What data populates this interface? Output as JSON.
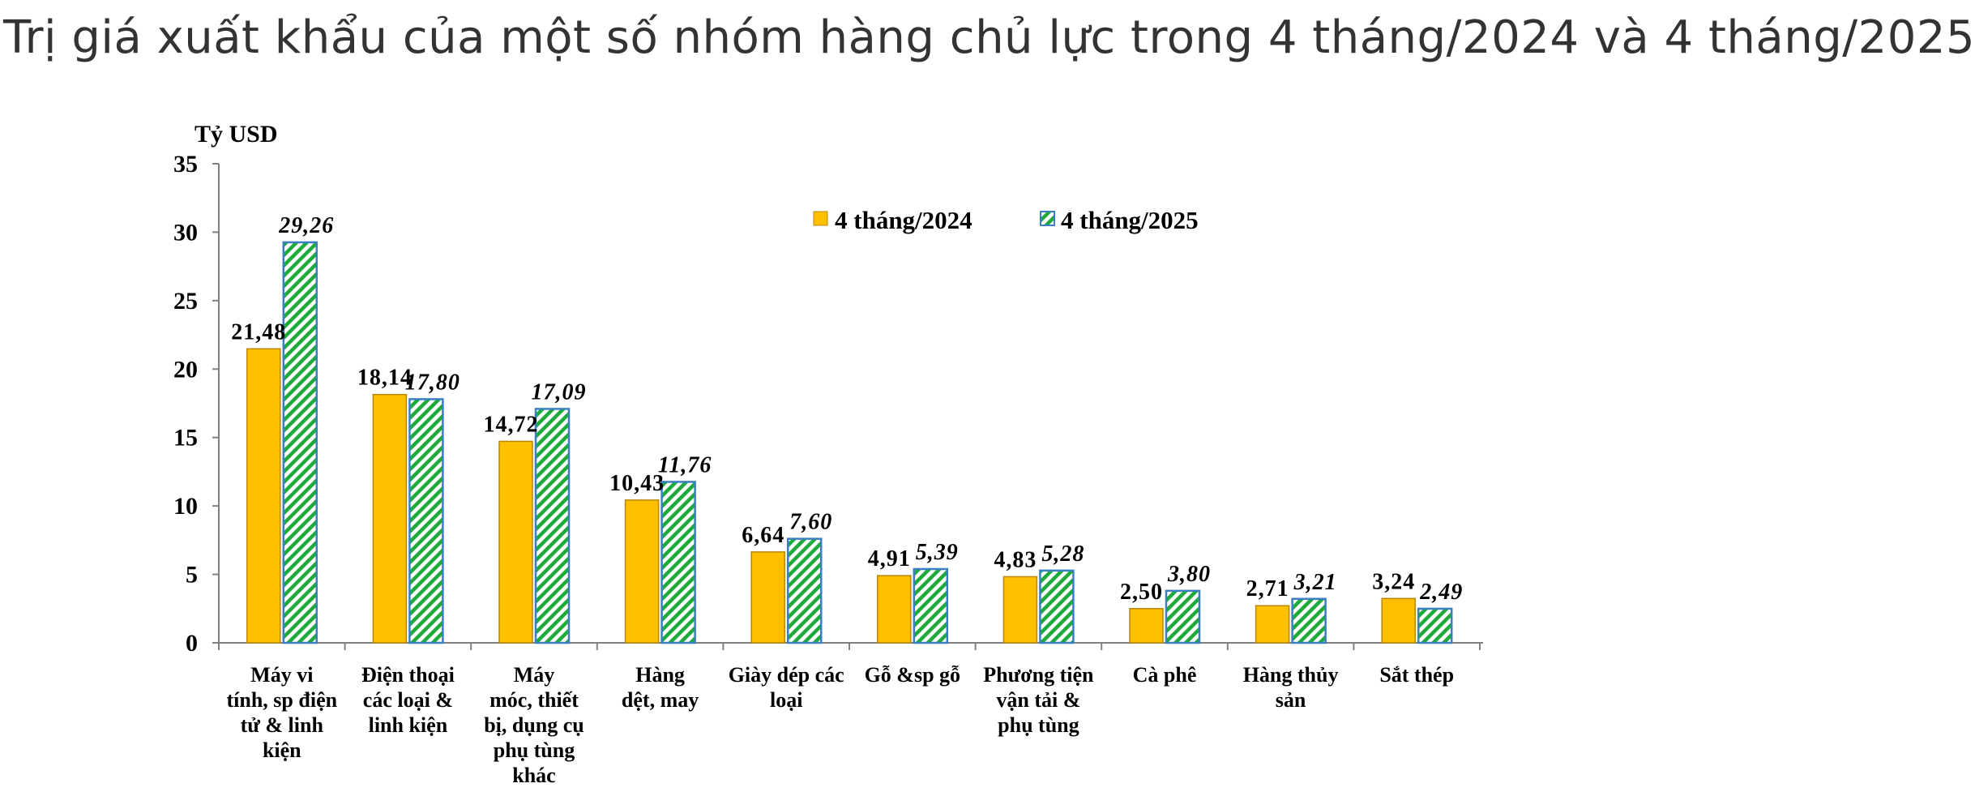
{
  "title": "Trị giá xuất khẩu của một số nhóm hàng chủ lực trong 4 tháng/2024 và 4 tháng/2025",
  "colors": {
    "series_2024_fill": "#FFC000",
    "series_2024_stroke": "#B8860B",
    "series_2025_hatch": "#1FAA3C",
    "series_2025_stroke": "#3A7FC1",
    "axis": "#808080",
    "text": "#000000"
  },
  "chart_data": {
    "type": "bar",
    "ylabel": "Tỷ USD",
    "ylim": [
      0,
      35
    ],
    "yticks": [
      "0",
      "5",
      "10",
      "15",
      "20",
      "25",
      "30",
      "35"
    ],
    "grid": false,
    "legend_position": "top-center",
    "categories": [
      [
        "Máy vi",
        "tính, sp điện",
        "tử & linh",
        "kiện"
      ],
      [
        "Điện thoại",
        "các loại &",
        "linh kiện"
      ],
      [
        "Máy",
        "móc, thiết",
        "bị, dụng cụ",
        "phụ tùng",
        "khác"
      ],
      [
        "Hàng",
        "dệt, may"
      ],
      [
        "Giày dép các",
        "loại"
      ],
      [
        "Gỗ &sp gỗ"
      ],
      [
        "Phương tiện",
        "vận tải &",
        "phụ tùng"
      ],
      [
        "Cà phê"
      ],
      [
        "Hàng thủy",
        "sản"
      ],
      [
        "Sắt thép"
      ]
    ],
    "series": [
      {
        "name": "4 tháng/2024",
        "values": [
          21.48,
          18.14,
          14.72,
          10.43,
          6.64,
          4.91,
          4.83,
          2.5,
          2.71,
          3.24
        ],
        "labels": [
          "21,48",
          "18,14",
          "14,72",
          "10,43",
          "6,64",
          "4,91",
          "4,83",
          "2,50",
          "2,71",
          "3,24"
        ]
      },
      {
        "name": "4 tháng/2025",
        "values": [
          29.26,
          17.8,
          17.09,
          11.76,
          7.6,
          5.39,
          5.28,
          3.8,
          3.21,
          2.49
        ],
        "labels": [
          "29,26",
          "17,80",
          "17,09",
          "11,76",
          "7,60",
          "5,39",
          "5,28",
          "3,80",
          "3,21",
          "2,49"
        ]
      }
    ]
  }
}
